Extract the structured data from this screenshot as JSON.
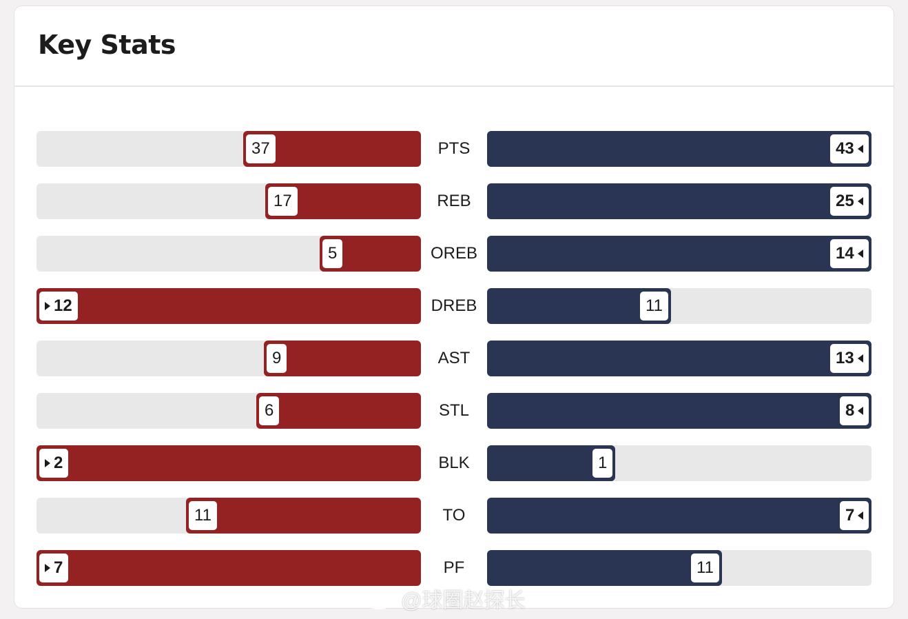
{
  "card": {
    "title": "Key Stats"
  },
  "colors": {
    "left_team": "#952223",
    "right_team": "#293553",
    "track": "#e8e8e8"
  },
  "chart_data": {
    "type": "bar",
    "categories": [
      "PTS",
      "REB",
      "OREB",
      "DREB",
      "AST",
      "STL",
      "BLK",
      "TO",
      "PF"
    ],
    "series": [
      {
        "values": [
          37,
          17,
          5,
          12,
          9,
          6,
          2,
          11,
          7
        ],
        "color": "#952223"
      },
      {
        "values": [
          43,
          25,
          14,
          11,
          13,
          8,
          1,
          7,
          11
        ],
        "color": "#293553"
      }
    ],
    "leader": [
      "right",
      "right",
      "right",
      "left",
      "right",
      "right",
      "left",
      "right",
      "left"
    ],
    "layout": "diverging-comparison"
  },
  "watermark": {
    "text": "@球圈赵探长",
    "icon": "weibo-icon"
  }
}
